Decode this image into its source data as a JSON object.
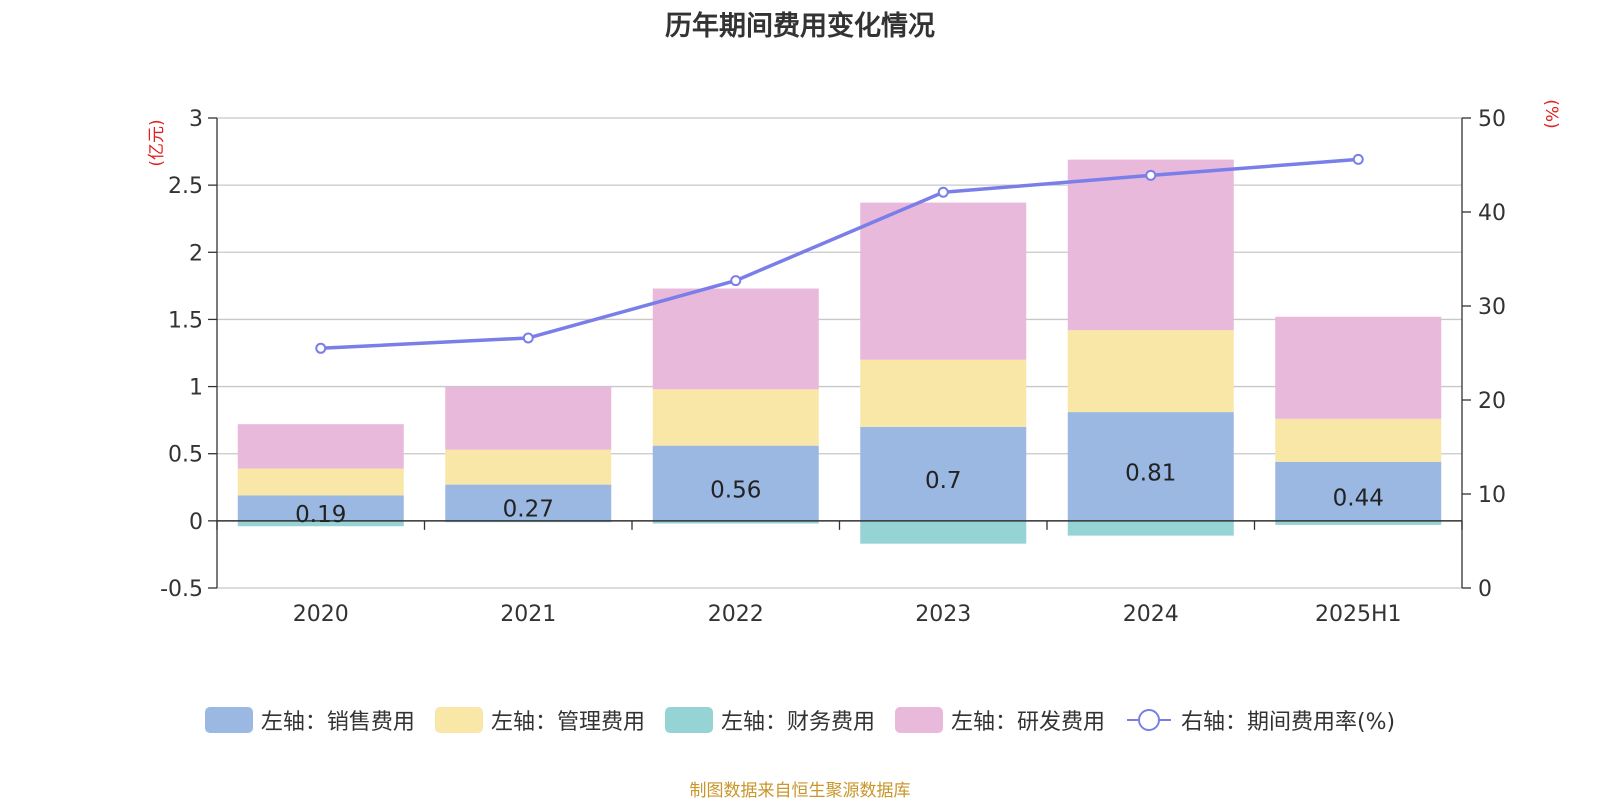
{
  "chart_data": {
    "type": "bar",
    "title": "历年期间费用变化情况",
    "left_unit": "(亿元)",
    "right_unit": "(%)",
    "categories": [
      "2020",
      "2021",
      "2022",
      "2023",
      "2024",
      "2025H1"
    ],
    "left_axis": {
      "min": -0.5,
      "max": 3,
      "ticks": [
        "3",
        "2.5",
        "2",
        "1.5",
        "1",
        "0.5",
        "0",
        "-0.5"
      ]
    },
    "right_axis": {
      "min": 0,
      "max": 50,
      "ticks": [
        "50",
        "40",
        "30",
        "20",
        "10",
        "0"
      ]
    },
    "stacked_series": [
      {
        "name": "左轴：销售费用",
        "color": "#9bb8e2",
        "values": [
          0.19,
          0.27,
          0.56,
          0.7,
          0.81,
          0.44
        ],
        "labels": [
          "0.19",
          "0.27",
          "0.56",
          "0.7",
          "0.81",
          "0.44"
        ]
      },
      {
        "name": "左轴：管理费用",
        "color": "#f9e7a7",
        "values": [
          0.2,
          0.26,
          0.42,
          0.5,
          0.61,
          0.32
        ]
      },
      {
        "name": "左轴：财务费用",
        "color": "#96d3d4",
        "values": [
          -0.04,
          -0.01,
          -0.02,
          -0.17,
          -0.11,
          -0.03
        ]
      },
      {
        "name": "左轴：研发费用",
        "color": "#e8b9da",
        "values": [
          0.33,
          0.47,
          0.75,
          1.17,
          1.27,
          0.76
        ]
      }
    ],
    "line_series": {
      "name": "右轴：期间费用率(%)",
      "color": "#7a7ee8",
      "values": [
        25.5,
        26.6,
        32.7,
        42.1,
        43.9,
        45.6
      ]
    },
    "grid": true,
    "legend_position": "bottom"
  },
  "source": "制图数据来自恒生聚源数据库"
}
